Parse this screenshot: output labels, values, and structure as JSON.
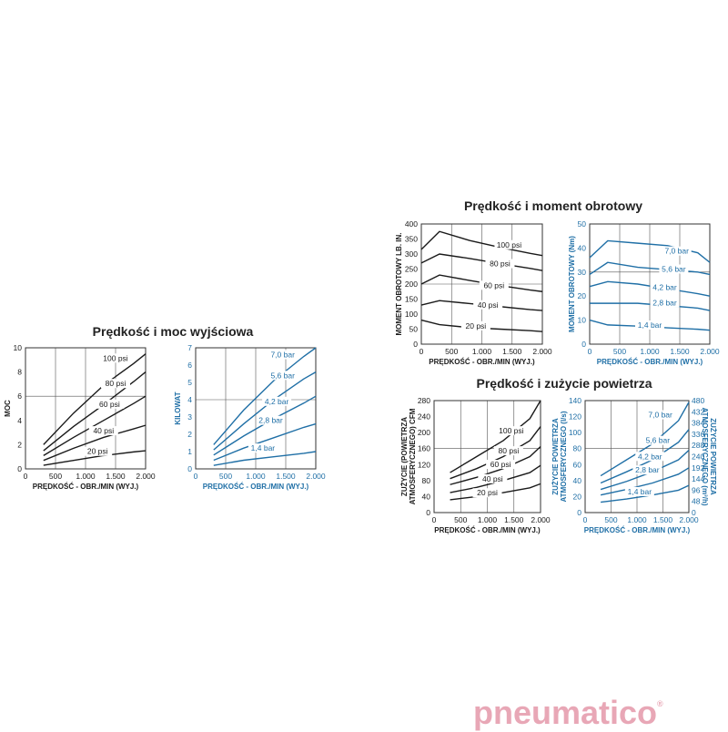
{
  "titles": {
    "power": "Prędkość i moc wyjściowa",
    "torque": "Prędkość i moment obrotowy",
    "air": "Prędkość i zużycie powietrza"
  },
  "logo": {
    "text": "pneumatico",
    "mark": "®"
  },
  "colors": {
    "black": "#1a1a1a",
    "blue": "#1f6fa6"
  },
  "chart_data": [
    {
      "id": "power_psi",
      "type": "line",
      "color": "black",
      "xlabel": "PRĘDKOŚĆ - OBR./MIN (WYJ.)",
      "ylabel": "MOC",
      "ylabel2": "",
      "xlim": [
        0,
        2000
      ],
      "ylim": [
        0,
        10
      ],
      "xticks": [
        0,
        500,
        1000,
        1500,
        2000
      ],
      "xticklabels": [
        "0",
        "500",
        "1.000",
        "1.500",
        "2.000"
      ],
      "yticks": [
        0,
        2,
        4,
        6,
        8,
        10
      ],
      "yticklabels": [
        "0",
        "2",
        "4",
        "6",
        "8",
        "10"
      ],
      "series": [
        {
          "name": "100 psi",
          "x": [
            300,
            800,
            1300,
            1800,
            2000
          ],
          "y": [
            2.0,
            4.6,
            6.9,
            8.7,
            9.5
          ]
        },
        {
          "name": "80 psi",
          "x": [
            300,
            800,
            1300,
            1800,
            2000
          ],
          "y": [
            1.5,
            3.5,
            5.3,
            7.2,
            8.0
          ]
        },
        {
          "name": "60 psi",
          "x": [
            300,
            800,
            1300,
            1800,
            2000
          ],
          "y": [
            1.1,
            2.6,
            4.0,
            5.4,
            6.0
          ]
        },
        {
          "name": "40 psi",
          "x": [
            300,
            800,
            1300,
            1800,
            2000
          ],
          "y": [
            0.7,
            1.7,
            2.6,
            3.3,
            3.6
          ]
        },
        {
          "name": "20 psi",
          "x": [
            300,
            800,
            1300,
            1800,
            2000
          ],
          "y": [
            0.3,
            0.7,
            1.1,
            1.4,
            1.5
          ]
        }
      ],
      "labelpos": [
        [
          1500,
          9.0
        ],
        [
          1500,
          6.9
        ],
        [
          1400,
          5.2
        ],
        [
          1300,
          3.0
        ],
        [
          1200,
          1.3
        ]
      ]
    },
    {
      "id": "power_bar",
      "type": "line",
      "color": "blue",
      "xlabel": "PRĘDKOŚĆ - OBR./MIN (WYJ.)",
      "ylabel": "KILOWAT",
      "ylabel2": "",
      "xlim": [
        0,
        2000
      ],
      "ylim": [
        0,
        7
      ],
      "xticks": [
        0,
        500,
        1000,
        1500,
        2000
      ],
      "xticklabels": [
        "0",
        "500",
        "1.000",
        "1.500",
        "2.000"
      ],
      "yticks": [
        0,
        1,
        2,
        3,
        4,
        5,
        6,
        7
      ],
      "yticklabels": [
        "0",
        "1",
        "2",
        "3",
        "4",
        "5",
        "6",
        "7"
      ],
      "series": [
        {
          "name": "7,0 bar",
          "x": [
            300,
            800,
            1300,
            1800,
            2000
          ],
          "y": [
            1.4,
            3.4,
            5.1,
            6.5,
            7.0
          ]
        },
        {
          "name": "5,6 bar",
          "x": [
            300,
            800,
            1300,
            1800,
            2000
          ],
          "y": [
            1.1,
            2.6,
            4.0,
            5.2,
            5.6
          ]
        },
        {
          "name": "4,2 bar",
          "x": [
            300,
            800,
            1300,
            1800,
            2000
          ],
          "y": [
            0.8,
            1.9,
            2.9,
            3.8,
            4.2
          ]
        },
        {
          "name": "2,8 bar",
          "x": [
            300,
            800,
            1300,
            1800,
            2000
          ],
          "y": [
            0.5,
            1.2,
            1.8,
            2.4,
            2.6
          ]
        },
        {
          "name": "1,4 bar",
          "x": [
            300,
            800,
            1300,
            1800,
            2000
          ],
          "y": [
            0.2,
            0.5,
            0.7,
            0.9,
            1.0
          ]
        }
      ],
      "labelpos": [
        [
          1450,
          6.5
        ],
        [
          1450,
          5.3
        ],
        [
          1350,
          3.8
        ],
        [
          1250,
          2.7
        ],
        [
          1120,
          1.1
        ]
      ]
    },
    {
      "id": "torque_psi",
      "type": "line",
      "color": "black",
      "xlabel": "PRĘDKOŚĆ - OBR./MIN (WYJ.)",
      "ylabel": "MOMENT OBROTOWY LB. IN.",
      "ylabel2": "",
      "xlim": [
        0,
        2000
      ],
      "ylim": [
        0,
        400
      ],
      "xticks": [
        0,
        500,
        1000,
        1500,
        2000
      ],
      "xticklabels": [
        "0",
        "500",
        "1.000",
        "1.500",
        "2.000"
      ],
      "yticks": [
        0,
        50,
        100,
        150,
        200,
        250,
        300,
        350,
        400
      ],
      "yticklabels": [
        "0",
        "50",
        "100",
        "150",
        "200",
        "250",
        "300",
        "350",
        "400"
      ],
      "series": [
        {
          "name": "100 psi",
          "x": [
            0,
            300,
            800,
            1300,
            1800,
            2000
          ],
          "y": [
            315,
            375,
            345,
            322,
            302,
            295
          ]
        },
        {
          "name": "80 psi",
          "x": [
            0,
            300,
            800,
            1300,
            1800,
            2000
          ],
          "y": [
            270,
            300,
            285,
            268,
            252,
            245
          ]
        },
        {
          "name": "60 psi",
          "x": [
            0,
            300,
            800,
            1300,
            1800,
            2000
          ],
          "y": [
            200,
            230,
            212,
            195,
            180,
            175
          ]
        },
        {
          "name": "40 psi",
          "x": [
            0,
            300,
            800,
            1300,
            1800,
            2000
          ],
          "y": [
            130,
            145,
            135,
            125,
            115,
            112
          ]
        },
        {
          "name": "20 psi",
          "x": [
            0,
            300,
            800,
            1300,
            1800,
            2000
          ],
          "y": [
            80,
            65,
            55,
            50,
            45,
            42
          ]
        }
      ],
      "labelpos": [
        [
          1450,
          325
        ],
        [
          1300,
          262
        ],
        [
          1200,
          190
        ],
        [
          1100,
          125
        ],
        [
          900,
          55
        ]
      ]
    },
    {
      "id": "torque_bar",
      "type": "line",
      "color": "blue",
      "xlabel": "PRĘDKOŚĆ - OBR./MIN (WYJ.)",
      "ylabel": "MOMENT OBROTOWY (Nm)",
      "ylabel2": "",
      "xlim": [
        0,
        2000
      ],
      "ylim": [
        0,
        50
      ],
      "xticks": [
        0,
        500,
        1000,
        1500,
        2000
      ],
      "xticklabels": [
        "0",
        "500",
        "1.000",
        "1.500",
        "2.000"
      ],
      "yticks": [
        0,
        10,
        20,
        30,
        40,
        50
      ],
      "yticklabels": [
        "0",
        "10",
        "20",
        "30",
        "40",
        "50"
      ],
      "series": [
        {
          "name": "7,0 bar",
          "x": [
            0,
            300,
            800,
            1300,
            1800,
            2000
          ],
          "y": [
            36,
            43,
            42,
            41,
            38,
            34
          ]
        },
        {
          "name": "5,6 bar",
          "x": [
            0,
            300,
            800,
            1300,
            1800,
            2000
          ],
          "y": [
            29,
            34,
            32,
            31,
            30,
            29
          ]
        },
        {
          "name": "4,2 bar",
          "x": [
            0,
            300,
            800,
            1300,
            1800,
            2000
          ],
          "y": [
            24,
            26,
            25,
            23,
            21,
            20
          ]
        },
        {
          "name": "2,8 bar",
          "x": [
            0,
            300,
            800,
            1300,
            1800,
            2000
          ],
          "y": [
            17,
            17,
            17,
            16,
            15,
            14
          ]
        },
        {
          "name": "1,4 bar",
          "x": [
            0,
            300,
            800,
            1300,
            1800,
            2000
          ],
          "y": [
            10,
            8,
            7.5,
            6.8,
            6.2,
            5.8
          ]
        }
      ],
      "labelpos": [
        [
          1450,
          38
        ],
        [
          1400,
          30.5
        ],
        [
          1250,
          23
        ],
        [
          1250,
          16.5
        ],
        [
          1000,
          7.2
        ]
      ]
    },
    {
      "id": "air_psi",
      "type": "line",
      "color": "black",
      "xlabel": "PRĘDKOŚĆ - OBR./MIN (WYJ.)",
      "ylabel": "ZUŻYCIE (POWIETRZA",
      "ylabel_b": "ATMOSFERYCZNEGO) CFM",
      "ylabel2": "",
      "xlim": [
        0,
        2000
      ],
      "ylim": [
        0,
        280
      ],
      "xticks": [
        0,
        500,
        1000,
        1500,
        2000
      ],
      "xticklabels": [
        "0",
        "500",
        "1.000",
        "1.500",
        "2.000"
      ],
      "yticks": [
        0,
        40,
        80,
        120,
        160,
        200,
        240,
        280
      ],
      "yticklabels": [
        "0",
        "40",
        "80",
        "120",
        "160",
        "200",
        "240",
        "280"
      ],
      "series": [
        {
          "name": "100 psi",
          "x": [
            300,
            800,
            1300,
            1800,
            2000
          ],
          "y": [
            100,
            140,
            180,
            235,
            280
          ]
        },
        {
          "name": "80 psi",
          "x": [
            300,
            800,
            1300,
            1800,
            2000
          ],
          "y": [
            85,
            110,
            140,
            180,
            215
          ]
        },
        {
          "name": "60 psi",
          "x": [
            300,
            800,
            1300,
            1800,
            2000
          ],
          "y": [
            70,
            88,
            110,
            140,
            165
          ]
        },
        {
          "name": "40 psi",
          "x": [
            300,
            800,
            1300,
            1800,
            2000
          ],
          "y": [
            50,
            63,
            80,
            100,
            118
          ]
        },
        {
          "name": "20 psi",
          "x": [
            300,
            800,
            1300,
            1800,
            2000
          ],
          "y": [
            32,
            40,
            50,
            62,
            72
          ]
        }
      ],
      "labelpos": [
        [
          1450,
          200
        ],
        [
          1400,
          150
        ],
        [
          1250,
          116
        ],
        [
          1100,
          80
        ],
        [
          1000,
          45
        ]
      ]
    },
    {
      "id": "air_bar",
      "type": "line",
      "color": "blue",
      "xlabel": "PRĘDKOŚĆ - OBR./MIN (WYJ.)",
      "ylabel": "ZUŻYCIE POWIETRZA",
      "ylabel_b": "ATMOSFERYCZNEGO (l/s)",
      "ylabel2": "ZUŻYCIE POWIETRZA",
      "ylabel2_b": "ATMOSFERYCZNEGO (m³/h)",
      "xlim": [
        0,
        2000
      ],
      "ylim": [
        0,
        140
      ],
      "xticks": [
        0,
        500,
        1000,
        1500,
        2000
      ],
      "xticklabels": [
        "0",
        "500",
        "1.000",
        "1.500",
        "2.000"
      ],
      "yticks": [
        0,
        20,
        40,
        60,
        80,
        100,
        120,
        140
      ],
      "yticklabels": [
        "0",
        "20",
        "40",
        "60",
        "80",
        "100",
        "120",
        "140"
      ],
      "y2ticklabels": [
        "0",
        "48",
        "96",
        "144",
        "192",
        "240",
        "288",
        "336",
        "384",
        "432",
        "480"
      ],
      "series": [
        {
          "name": "7,0 bar",
          "x": [
            300,
            800,
            1300,
            1800,
            2000
          ],
          "y": [
            46,
            66,
            86,
            115,
            138
          ]
        },
        {
          "name": "5,6 bar",
          "x": [
            300,
            800,
            1300,
            1800,
            2000
          ],
          "y": [
            37,
            51,
            66,
            88,
            104
          ]
        },
        {
          "name": "4,2 bar",
          "x": [
            300,
            800,
            1300,
            1800,
            2000
          ],
          "y": [
            29,
            39,
            51,
            66,
            78
          ]
        },
        {
          "name": "2,8 bar",
          "x": [
            300,
            800,
            1300,
            1800,
            2000
          ],
          "y": [
            22,
            29,
            37,
            48,
            56
          ]
        },
        {
          "name": "1,4 bar",
          "x": [
            300,
            800,
            1300,
            1800,
            2000
          ],
          "y": [
            13,
            17,
            22,
            28,
            34
          ]
        }
      ],
      "labelpos": [
        [
          1450,
          120
        ],
        [
          1400,
          88
        ],
        [
          1250,
          68
        ],
        [
          1200,
          51
        ],
        [
          1050,
          24
        ]
      ]
    }
  ]
}
